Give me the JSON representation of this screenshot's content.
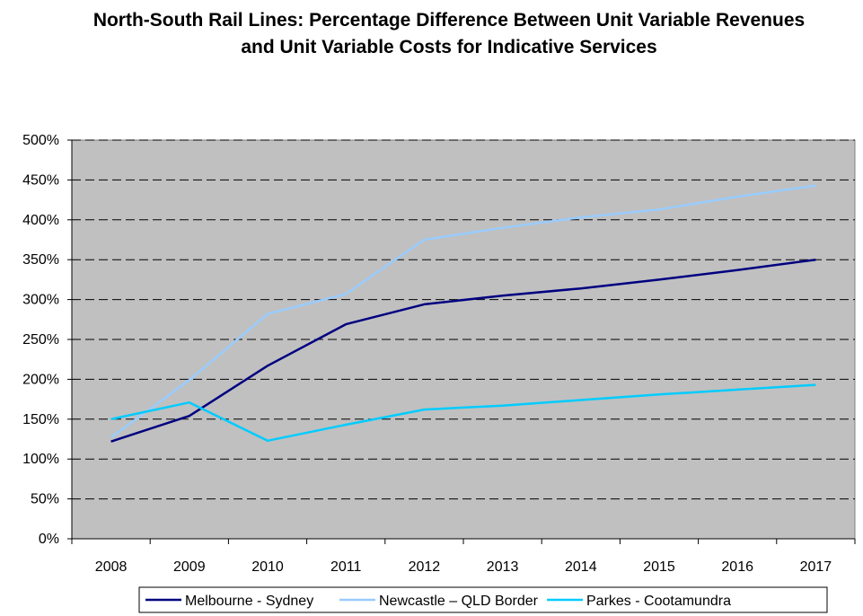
{
  "chart_data": {
    "type": "line",
    "title": "North-South Rail Lines: Percentage Difference Between Unit Variable Revenues and Unit Variable Costs for Indicative Services",
    "categories": [
      "2008",
      "2009",
      "2010",
      "2011",
      "2012",
      "2013",
      "2014",
      "2015",
      "2016",
      "2017"
    ],
    "ylim": [
      0,
      500
    ],
    "yticks": [
      "0%",
      "50%",
      "100%",
      "150%",
      "200%",
      "250%",
      "300%",
      "350%",
      "400%",
      "450%",
      "500%"
    ],
    "grid": true,
    "legend_position": "bottom",
    "plot_background": "#c0c0c0",
    "series": [
      {
        "name": "Melbourne - Sydney",
        "color": "#000080",
        "values": [
          122,
          154,
          217,
          269,
          294,
          305,
          314,
          325,
          337,
          350
        ]
      },
      {
        "name": "Newcastle – QLD Border",
        "color": "#99ccff",
        "values": [
          127,
          199,
          282,
          307,
          375,
          390,
          403,
          413,
          429,
          443
        ]
      },
      {
        "name": "Parkes - Cootamundra",
        "color": "#00ccff",
        "values": [
          150,
          171,
          123,
          143,
          162,
          167,
          174,
          181,
          187,
          193
        ]
      }
    ]
  }
}
